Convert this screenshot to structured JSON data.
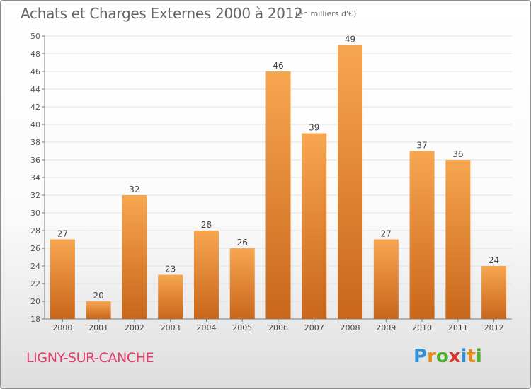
{
  "header": {
    "title": "Achats et Charges Externes 2000 à 2012",
    "unit_note": "(en milliers d'€)"
  },
  "footer": {
    "commune": "LIGNY-SUR-CANCHE",
    "logo_text": "Proxiti",
    "logo_letters": [
      "P",
      "r",
      "o",
      "x",
      "i",
      "t",
      "i"
    ]
  },
  "colors": {
    "bar_light": "#f7a650",
    "bar_dark": "#c9661a",
    "commune_text": "#e23c6c",
    "axis": "#7a7a7a",
    "grid": "#e2e2e2"
  },
  "chart_data": {
    "type": "bar",
    "title": "Achats et Charges Externes 2000 à 2012",
    "subtitle": "(en milliers d'€)",
    "xlabel": "",
    "ylabel": "",
    "categories": [
      "2000",
      "2001",
      "2002",
      "2003",
      "2004",
      "2005",
      "2006",
      "2007",
      "2008",
      "2009",
      "2010",
      "2011",
      "2012"
    ],
    "values": [
      27,
      20,
      32,
      23,
      28,
      26,
      46,
      39,
      49,
      27,
      37,
      36,
      24
    ],
    "ylim": [
      18,
      50
    ],
    "yticks": [
      18,
      20,
      22,
      24,
      26,
      28,
      30,
      32,
      34,
      36,
      38,
      40,
      42,
      44,
      46,
      48,
      50
    ],
    "grid": true,
    "data_labels": true
  }
}
